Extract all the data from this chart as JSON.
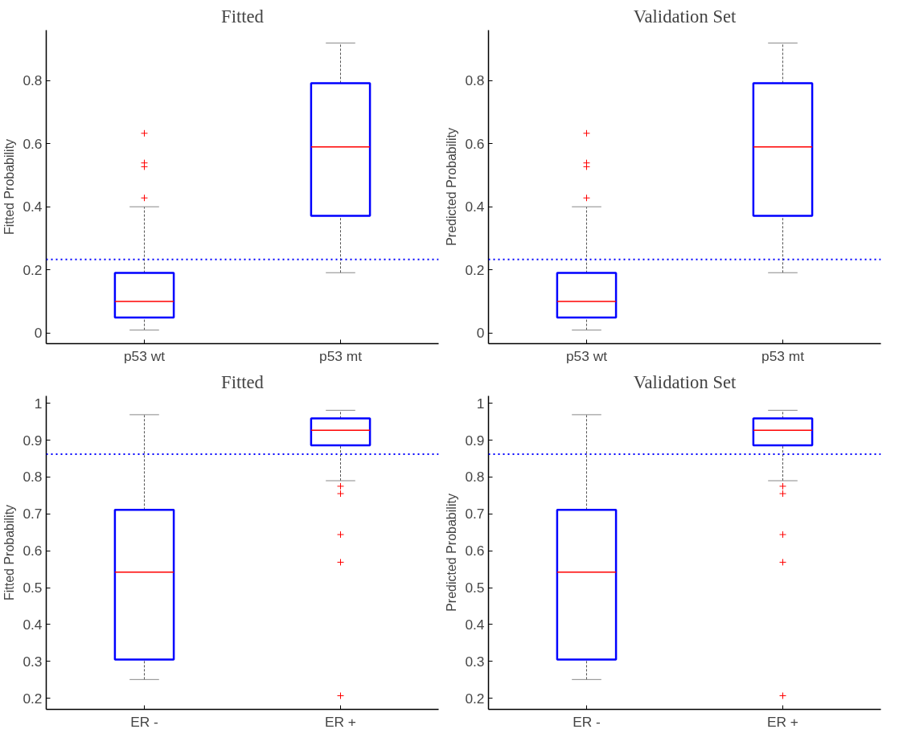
{
  "chart_data": [
    {
      "type": "box",
      "title": "Fitted",
      "ylabel": "Fitted Probability",
      "categories": [
        "p53 wt",
        "p53 mt"
      ],
      "ylim": [
        -0.034,
        0.96
      ],
      "yticks": [
        0,
        0.2,
        0.4,
        0.6,
        0.8
      ],
      "grid": false,
      "marker": "cross",
      "series": [
        {
          "color": "#0000ff",
          "boxes": [
            {
              "low": 0.009,
              "q1": 0.049,
              "median": 0.1,
              "q3": 0.19,
              "high": 0.4,
              "outliers": [
                0.428,
                0.527,
                0.539,
                0.633
              ]
            },
            {
              "low": 0.191,
              "q1": 0.371,
              "median": 0.59,
              "q3": 0.792,
              "high": 0.919
            }
          ]
        }
      ],
      "ref_lines": [
        {
          "axis": "y",
          "value": 0.233,
          "color": "#0000ff",
          "line_style": "dotted"
        }
      ]
    },
    {
      "type": "box",
      "title": "Validation Set",
      "ylabel": "Predicted Probability",
      "categories": [
        "p53 wt",
        "p53 mt"
      ],
      "ylim": [
        -0.034,
        0.96
      ],
      "yticks": [
        0,
        0.2,
        0.4,
        0.6,
        0.8
      ],
      "grid": false,
      "marker": "cross",
      "series": [
        {
          "color": "#0000ff",
          "boxes": [
            {
              "low": 0.009,
              "q1": 0.049,
              "median": 0.1,
              "q3": 0.19,
              "high": 0.4,
              "outliers": [
                0.428,
                0.527,
                0.539,
                0.633
              ]
            },
            {
              "low": 0.191,
              "q1": 0.371,
              "median": 0.59,
              "q3": 0.792,
              "high": 0.919
            }
          ]
        }
      ],
      "ref_lines": [
        {
          "axis": "y",
          "value": 0.233,
          "color": "#0000ff",
          "line_style": "dotted"
        }
      ]
    },
    {
      "type": "box",
      "title": "Fitted",
      "ylabel": "Fitted Probability",
      "categories": [
        "ER -",
        "ER +"
      ],
      "ylim": [
        0.17,
        1.02
      ],
      "yticks": [
        0.2,
        0.3,
        0.4,
        0.5,
        0.6,
        0.7,
        0.8,
        0.9,
        1
      ],
      "grid": false,
      "marker": "cross",
      "series": [
        {
          "color": "#0000ff",
          "boxes": [
            {
              "low": 0.251,
              "q1": 0.305,
              "median": 0.542,
              "q3": 0.711,
              "high": 0.969
            },
            {
              "low": 0.79,
              "q1": 0.886,
              "median": 0.927,
              "q3": 0.959,
              "high": 0.981,
              "outliers": [
                0.207,
                0.569,
                0.644,
                0.755,
                0.775
              ]
            }
          ]
        }
      ],
      "ref_lines": [
        {
          "axis": "y",
          "value": 0.862,
          "color": "#0000ff",
          "line_style": "dotted"
        }
      ]
    },
    {
      "type": "box",
      "title": "Validation Set",
      "ylabel": "Predicted Probability",
      "categories": [
        "ER -",
        "ER +"
      ],
      "ylim": [
        0.17,
        1.02
      ],
      "yticks": [
        0.2,
        0.3,
        0.4,
        0.5,
        0.6,
        0.7,
        0.8,
        0.9,
        1
      ],
      "grid": false,
      "marker": "cross",
      "series": [
        {
          "color": "#0000ff",
          "boxes": [
            {
              "low": 0.251,
              "q1": 0.305,
              "median": 0.542,
              "q3": 0.711,
              "high": 0.969
            },
            {
              "low": 0.79,
              "q1": 0.886,
              "median": 0.927,
              "q3": 0.959,
              "high": 0.981,
              "outliers": [
                0.207,
                0.569,
                0.644,
                0.755,
                0.775
              ]
            }
          ]
        }
      ],
      "ref_lines": [
        {
          "axis": "y",
          "value": 0.862,
          "color": "#0000ff",
          "line_style": "dotted"
        }
      ]
    }
  ]
}
